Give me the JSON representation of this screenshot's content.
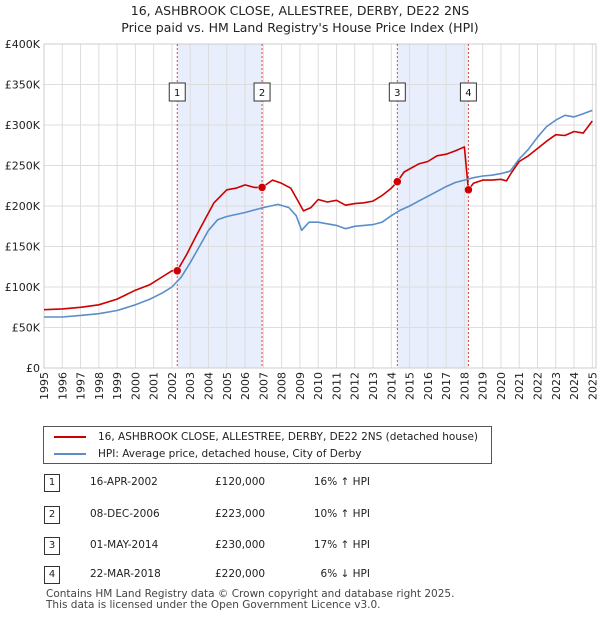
{
  "title_line1": "16, ASHBROOK CLOSE, ALLESTREE, DERBY, DE22 2NS",
  "title_line2": "Price paid vs. HM Land Registry's House Price Index (HPI)",
  "chart_data": {
    "type": "line",
    "y_ticks": [
      "£0",
      "£50K",
      "£100K",
      "£150K",
      "£200K",
      "£250K",
      "£300K",
      "£350K",
      "£400K"
    ],
    "ylim": [
      0,
      400000
    ],
    "xlim": [
      1995,
      2025.2
    ],
    "x_ticks": [
      "1995",
      "1996",
      "1997",
      "1998",
      "1999",
      "2000",
      "2001",
      "2002",
      "2003",
      "2004",
      "2005",
      "2006",
      "2007",
      "2008",
      "2009",
      "2010",
      "2011",
      "2012",
      "2013",
      "2014",
      "2015",
      "2016",
      "2017",
      "2018",
      "2019",
      "2020",
      "2021",
      "2022",
      "2023",
      "2024",
      "2025"
    ],
    "colors": {
      "property": "#cc0000",
      "hpi": "#5b8ec9",
      "shade": "#e8eefb",
      "sale_line": "#cc0000",
      "grid": "#dddddd"
    },
    "series": [
      {
        "name": "property",
        "x": [
          1995.0,
          1996.0,
          1997.0,
          1998.0,
          1999.0,
          2000.0,
          2000.8,
          2001.5,
          2002.0,
          2002.29,
          2002.8,
          2003.3,
          2003.8,
          2004.3,
          2005.0,
          2005.5,
          2006.0,
          2006.5,
          2006.93,
          2007.5,
          2008.0,
          2008.5,
          2008.9,
          2009.2,
          2009.6,
          2010.0,
          2010.5,
          2011.0,
          2011.5,
          2012.0,
          2012.5,
          2013.0,
          2013.5,
          2014.0,
          2014.33,
          2014.7,
          2015.5,
          2016.0,
          2016.5,
          2017.0,
          2017.5,
          2017.9,
          2018.0,
          2018.22,
          2018.5,
          2019.0,
          2019.5,
          2020.0,
          2020.3,
          2020.6,
          2021.0,
          2021.5,
          2022.0,
          2022.5,
          2023.0,
          2023.5,
          2024.0,
          2024.5,
          2025.0
        ],
        "values": [
          72000,
          73000,
          75000,
          78000,
          85000,
          96000,
          103000,
          113000,
          120000,
          120000,
          140000,
          162000,
          183000,
          204000,
          220000,
          222000,
          226000,
          223000,
          223000,
          232000,
          228000,
          222000,
          206000,
          194000,
          198000,
          208000,
          205000,
          207000,
          201000,
          203000,
          204000,
          206000,
          213000,
          222000,
          230000,
          242000,
          252000,
          255000,
          262000,
          264000,
          268000,
          272000,
          273000,
          220000,
          228000,
          232000,
          232000,
          233000,
          231000,
          242000,
          255000,
          262000,
          271000,
          280000,
          288000,
          287000,
          292000,
          290000,
          305000
        ]
      },
      {
        "name": "hpi",
        "x": [
          1995.0,
          1996.0,
          1997.0,
          1998.0,
          1999.0,
          2000.0,
          2000.8,
          2001.5,
          2002.0,
          2002.5,
          2003.0,
          2003.5,
          2004.0,
          2004.5,
          2005.0,
          2006.0,
          2007.0,
          2007.8,
          2008.4,
          2008.8,
          2009.1,
          2009.5,
          2010.0,
          2010.5,
          2011.0,
          2011.5,
          2012.0,
          2012.5,
          2013.0,
          2013.5,
          2014.0,
          2014.5,
          2015.0,
          2015.5,
          2016.0,
          2016.5,
          2017.0,
          2017.5,
          2018.0,
          2018.5,
          2019.0,
          2019.5,
          2020.0,
          2020.5,
          2021.0,
          2021.5,
          2022.0,
          2022.5,
          2023.0,
          2023.5,
          2024.0,
          2024.5,
          2025.0
        ],
        "values": [
          63000,
          63000,
          65000,
          67000,
          71000,
          78000,
          85000,
          93000,
          100000,
          112000,
          130000,
          150000,
          170000,
          183000,
          187000,
          192000,
          198000,
          202000,
          198000,
          188000,
          170000,
          180000,
          180000,
          178000,
          176000,
          172000,
          175000,
          176000,
          177000,
          180000,
          188000,
          195000,
          200000,
          206000,
          212000,
          218000,
          224000,
          229000,
          232000,
          235000,
          237000,
          238000,
          240000,
          243000,
          258000,
          270000,
          285000,
          298000,
          306000,
          312000,
          310000,
          314000,
          318000
        ]
      }
    ],
    "sales": [
      {
        "label": "1",
        "x": 2002.29,
        "value": 120000,
        "date": "16-APR-2002",
        "price": "£120,000",
        "hpi": "16% ↑ HPI"
      },
      {
        "label": "2",
        "x": 2006.93,
        "value": 223000,
        "date": "08-DEC-2006",
        "price": "£223,000",
        "hpi": "10% ↑ HPI"
      },
      {
        "label": "3",
        "x": 2014.33,
        "value": 230000,
        "date": "01-MAY-2014",
        "price": "£230,000",
        "hpi": "17% ↑ HPI"
      },
      {
        "label": "4",
        "x": 2018.22,
        "value": 220000,
        "date": "22-MAR-2018",
        "price": "£220,000",
        "hpi": "6% ↓ HPI"
      }
    ],
    "legend": {
      "property_label": "16, ASHBROOK CLOSE, ALLESTREE, DERBY, DE22 2NS (detached house)",
      "hpi_label": "HPI: Average price, detached house, City of Derby"
    }
  },
  "footer": {
    "line1": "Contains HM Land Registry data © Crown copyright and database right 2025.",
    "line2": "This data is licensed under the Open Government Licence v3.0."
  }
}
